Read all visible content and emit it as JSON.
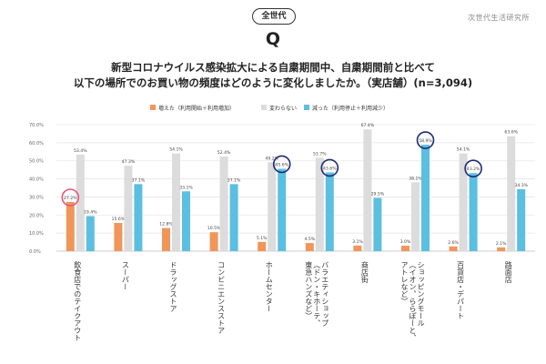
{
  "header": {
    "badge": "全世代",
    "brand": "次世代生活研究所",
    "q_mark": "Q",
    "question_line1": "新型コロナウイルス感染拡大による自粛期間中、自粛期間前と比べて",
    "question_line2": "以下の場所でのお買い物の頻度はどのように変化しましたか。（実店舗）(n=3,094)"
  },
  "chart_data": {
    "type": "bar",
    "ylim": [
      0,
      70
    ],
    "yticks": [
      "0.0%",
      "10.0%",
      "20.0%",
      "30.0%",
      "40.0%",
      "50.0%",
      "60.0%",
      "70.0%"
    ],
    "grid": true,
    "legend_position": "top",
    "series": [
      {
        "name": "増えた（利用開始＋利用増加）",
        "color": "#f0965a",
        "values": [
          27.2,
          15.6,
          12.8,
          10.5,
          5.1,
          4.5,
          3.1,
          3.0,
          2.6,
          2.1
        ],
        "labels": [
          "27.2%",
          "15.6%",
          "12.8%",
          "10.5%",
          "5.1%",
          "4.5%",
          "3.1%",
          "3.0%",
          "2.6%",
          "2.1%"
        ]
      },
      {
        "name": "変わらない",
        "color": "#dcdcdc",
        "values": [
          53.4,
          47.3,
          54.1,
          52.4,
          49.2,
          51.7,
          67.4,
          38.1,
          54.1,
          63.6
        ],
        "labels": [
          "53.4%",
          "47.3%",
          "54.1%",
          "52.4%",
          "49.2%",
          "51.7%",
          "67.4%",
          "38.1%",
          "54.1%",
          "63.6%"
        ]
      },
      {
        "name": "減った（利用停止＋利用減少）",
        "color": "#5bbfe0",
        "values": [
          19.4,
          37.1,
          33.1,
          37.1,
          45.6,
          43.6,
          29.5,
          58.9,
          43.2,
          34.3
        ],
        "labels": [
          "19.4%",
          "37.1%",
          "33.1%",
          "37.1%",
          "45.6%",
          "43.6%",
          "29.5%",
          "58.9%",
          "43.2%",
          "34.3%"
        ]
      }
    ],
    "categories": [
      [
        "飲食店でのテイクアウト"
      ],
      [
        "スーパー"
      ],
      [
        "ドラッグストア"
      ],
      [
        "コンビニエンスストア"
      ],
      [
        "ホームセンター"
      ],
      [
        "バラエティショップ",
        "（ドン・キホーテ、",
        "東急ハンズなど）"
      ],
      [
        "商店街"
      ],
      [
        "ショッピングモール",
        "（イオン、ららぽーと、",
        "アトレなど）"
      ],
      [
        "百貨店・デパート"
      ],
      [
        "路面店"
      ]
    ],
    "highlights": [
      {
        "category_index": 0,
        "series_index": 0,
        "color": "#e8587a"
      },
      {
        "category_index": 4,
        "series_index": 2,
        "color": "#1e2a78"
      },
      {
        "category_index": 5,
        "series_index": 2,
        "color": "#1e2a78"
      },
      {
        "category_index": 7,
        "series_index": 2,
        "color": "#1e2a78"
      },
      {
        "category_index": 8,
        "series_index": 2,
        "color": "#1e2a78"
      }
    ]
  }
}
